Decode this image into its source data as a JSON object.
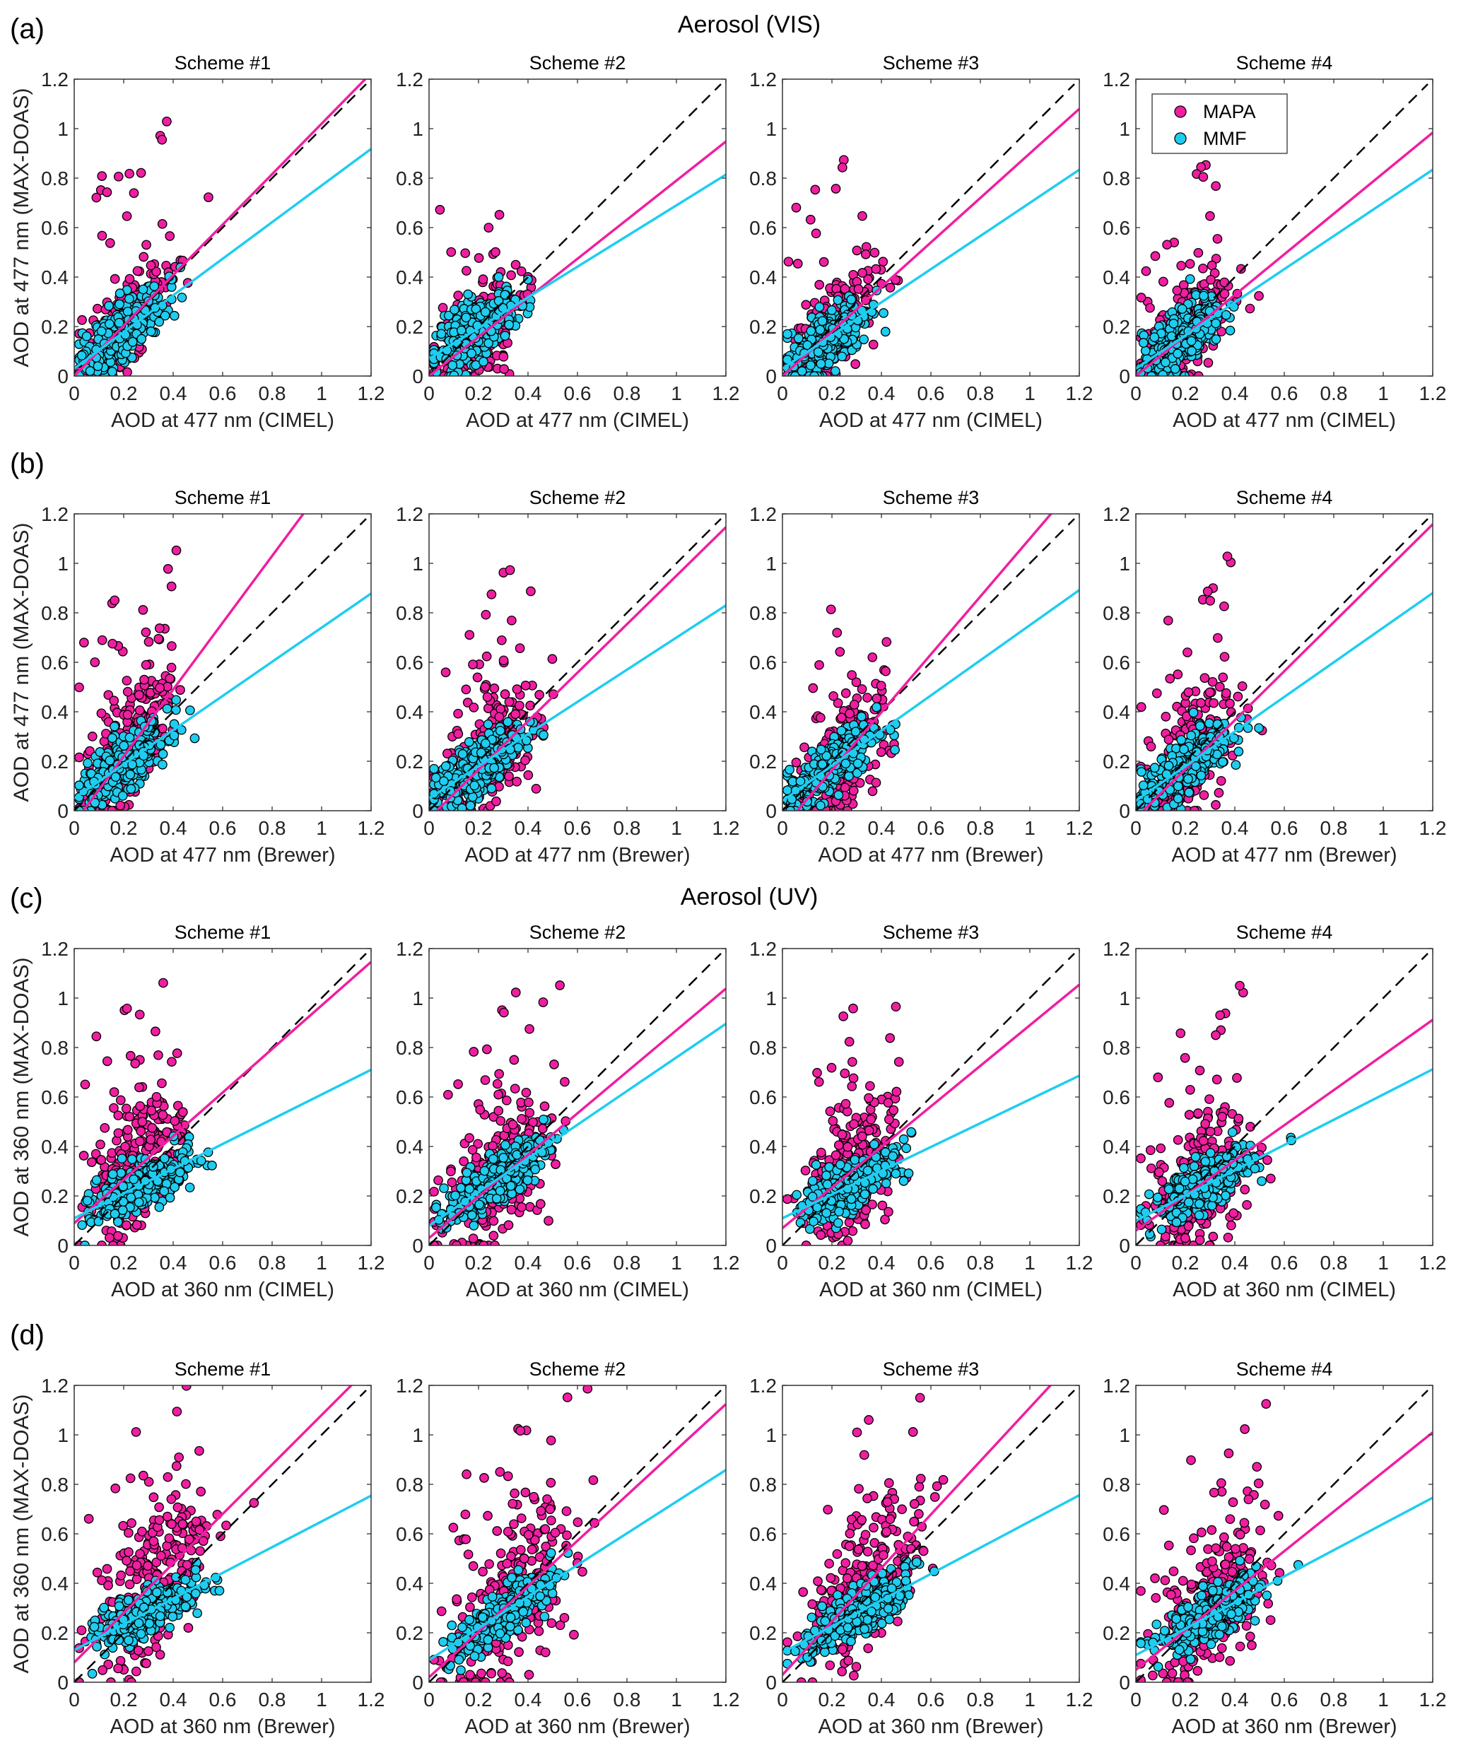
{
  "figure": {
    "supertitles": [
      "Aerosol (VIS)",
      "Aerosol (UV)"
    ],
    "legend": {
      "entries": [
        "MAPA",
        "MMF"
      ],
      "placement": "top-left of panel (a) Scheme #4"
    },
    "colors": {
      "MAPA": "#f01ea0",
      "MMF": "#1ecdf0",
      "one_to_one": "#000000",
      "marker_edge": "#000000"
    }
  },
  "chart_data": [
    {
      "row": "(a)",
      "group": "Aerosol (VIS)",
      "ylabel": "AOD at 477 nm (MAX-DOAS)",
      "xlabel": "AOD at 477 nm (CIMEL)",
      "panels": [
        {
          "title": "Scheme #1",
          "fits": {
            "MAPA": [
              0.0,
              1.02
            ],
            "MMF": [
              0.03,
              0.74
            ]
          }
        },
        {
          "title": "Scheme #2",
          "fits": {
            "MAPA": [
              0.0,
              0.79
            ],
            "MMF": [
              0.07,
              0.62
            ]
          }
        },
        {
          "title": "Scheme #3",
          "fits": {
            "MAPA": [
              0.0,
              0.9
            ],
            "MMF": [
              0.03,
              0.67
            ]
          }
        },
        {
          "title": "Scheme #4",
          "fits": {
            "MAPA": [
              0.0,
              0.82
            ],
            "MMF": [
              0.03,
              0.67
            ]
          }
        }
      ]
    },
    {
      "row": "(b)",
      "group": "Aerosol (VIS)",
      "ylabel": "AOD at 477 nm (MAX-DOAS)",
      "xlabel": "AOD at 477 nm (Brewer)",
      "panels": [
        {
          "title": "Scheme #1",
          "fits": {
            "MAPA": [
              -0.05,
              1.35
            ],
            "MMF": [
              0.05,
              0.69
            ]
          }
        },
        {
          "title": "Scheme #2",
          "fits": {
            "MAPA": [
              -0.03,
              0.98
            ],
            "MMF": [
              0.05,
              0.65
            ]
          }
        },
        {
          "title": "Scheme #3",
          "fits": {
            "MAPA": [
              -0.07,
              1.17
            ],
            "MMF": [
              0.04,
              0.71
            ]
          }
        },
        {
          "title": "Scheme #4",
          "fits": {
            "MAPA": [
              -0.03,
              0.99
            ],
            "MMF": [
              0.04,
              0.7
            ]
          }
        }
      ]
    },
    {
      "row": "(c)",
      "group": "Aerosol (UV)",
      "ylabel": "AOD at 360 nm (MAX-DOAS)",
      "xlabel": "AOD at 360 nm (CIMEL)",
      "panels": [
        {
          "title": "Scheme #1",
          "fits": {
            "MAPA": [
              0.09,
              0.88
            ],
            "MMF": [
              0.11,
              0.5
            ]
          }
        },
        {
          "title": "Scheme #2",
          "fits": {
            "MAPA": [
              0.03,
              0.84
            ],
            "MMF": [
              0.08,
              0.68
            ]
          }
        },
        {
          "title": "Scheme #3",
          "fits": {
            "MAPA": [
              0.07,
              0.82
            ],
            "MMF": [
              0.11,
              0.48
            ]
          }
        },
        {
          "title": "Scheme #4",
          "fits": {
            "MAPA": [
              0.06,
              0.71
            ],
            "MMF": [
              0.1,
              0.51
            ]
          }
        }
      ]
    },
    {
      "row": "(d)",
      "group": "Aerosol (UV)",
      "ylabel": "AOD at 360 nm (MAX-DOAS)",
      "xlabel": "AOD at 360 nm (Brewer)",
      "panels": [
        {
          "title": "Scheme #1",
          "fits": {
            "MAPA": [
              0.08,
              1.0
            ],
            "MMF": [
              0.13,
              0.52
            ]
          }
        },
        {
          "title": "Scheme #2",
          "fits": {
            "MAPA": [
              0.02,
              0.92
            ],
            "MMF": [
              0.09,
              0.64
            ]
          }
        },
        {
          "title": "Scheme #3",
          "fits": {
            "MAPA": [
              0.03,
              1.08
            ],
            "MMF": [
              0.12,
              0.53
            ]
          }
        },
        {
          "title": "Scheme #4",
          "fits": {
            "MAPA": [
              0.05,
              0.8
            ],
            "MMF": [
              0.11,
              0.53
            ]
          }
        }
      ]
    }
  ],
  "axes": {
    "type": "scatter",
    "xlim": [
      0,
      1.2
    ],
    "ylim": [
      0,
      1.2
    ],
    "xticks": [
      "0",
      "0.2",
      "0.4",
      "0.6",
      "0.8",
      "1",
      "1.2"
    ],
    "yticks": [
      "0",
      "0.2",
      "0.4",
      "0.6",
      "0.8",
      "1",
      "1.2"
    ],
    "reference_line": "1:1 dashed",
    "fit_format": "[intercept, slope]",
    "scatter_clusters": [
      {
        "row": 0,
        "MAPA": {
          "cx": 0.2,
          "cy": 0.18,
          "sx": 0.09,
          "sy": 0.14
        },
        "MMF": {
          "cx": 0.19,
          "cy": 0.16,
          "sx": 0.08,
          "sy": 0.1
        }
      },
      {
        "row": 1,
        "MAPA": {
          "cx": 0.22,
          "cy": 0.25,
          "sx": 0.1,
          "sy": 0.2
        },
        "MMF": {
          "cx": 0.2,
          "cy": 0.18,
          "sx": 0.09,
          "sy": 0.09
        }
      },
      {
        "row": 2,
        "MAPA": {
          "cx": 0.27,
          "cy": 0.33,
          "sx": 0.1,
          "sy": 0.22
        },
        "MMF": {
          "cx": 0.27,
          "cy": 0.27,
          "sx": 0.1,
          "sy": 0.08
        }
      },
      {
        "row": 3,
        "MAPA": {
          "cx": 0.33,
          "cy": 0.36,
          "sx": 0.12,
          "sy": 0.24
        },
        "MMF": {
          "cx": 0.3,
          "cy": 0.28,
          "sx": 0.1,
          "sy": 0.08
        }
      }
    ]
  }
}
